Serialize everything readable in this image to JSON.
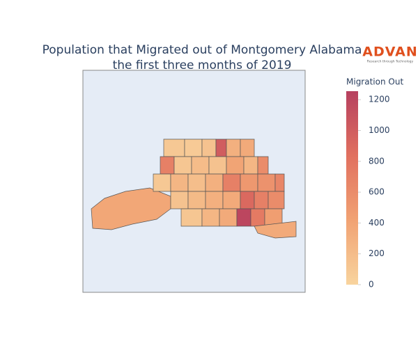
{
  "chart_data": {
    "type": "choropleth",
    "title_lines": [
      "Population that Migrated out of Montgomery Alabama",
      "the first three months of 2019"
    ],
    "logo": {
      "text": "ADVAN",
      "tagline": "Research through Technology"
    },
    "colorbar": {
      "title": "Migration Out",
      "lim": [
        0,
        1255
      ],
      "ticks": [
        0,
        200,
        400,
        600,
        800,
        1000,
        1200
      ],
      "colorscale": [
        "#f8d49e",
        "#f1a273",
        "#e1705f",
        "#b6405f"
      ]
    },
    "map_background": "#e5ecf6",
    "values": [
      380,
      100,
      80,
      150,
      1000,
      300,
      350,
      700,
      120,
      200,
      150,
      400,
      250,
      600,
      100,
      250,
      180,
      300,
      700,
      500,
      550,
      650,
      150,
      220,
      300,
      350,
      900,
      700,
      600,
      120,
      250,
      350,
      1200,
      750,
      450,
      350
    ]
  }
}
